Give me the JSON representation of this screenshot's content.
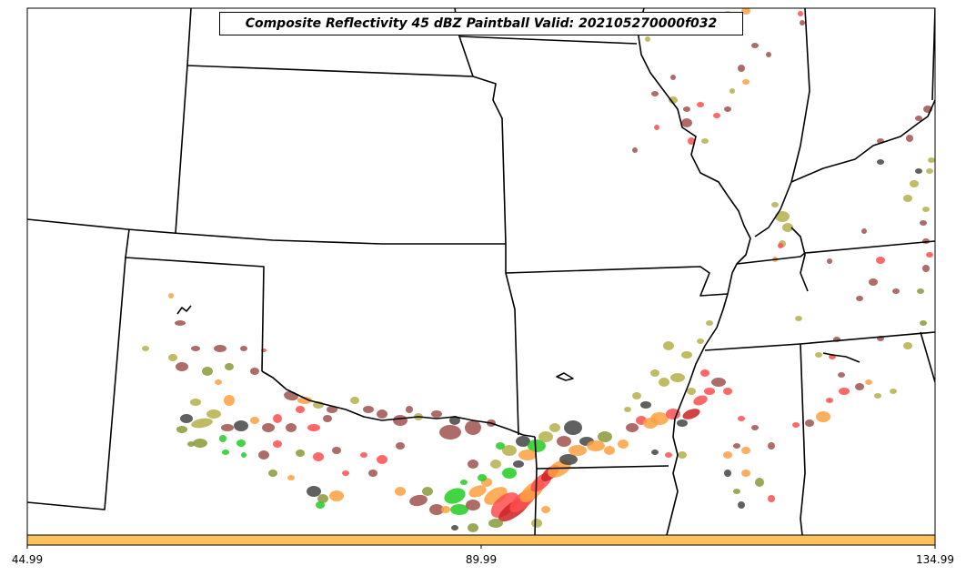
{
  "title": "Composite Reflectivity 45 dBZ Paintball Valid: 202105270000f032",
  "colorbar": {
    "color": "#ffc15c",
    "tick_labels": [
      "44.99",
      "89.99",
      "134.99"
    ],
    "range": [
      44.99,
      134.99
    ]
  },
  "colors": {
    "state_borders": "#000000",
    "member_palette": [
      "#a0524d",
      "#b5b04a",
      "#ff4d4d",
      "#ffa040",
      "#444444",
      "#22cc22",
      "#8a9a3a",
      "#cc2222"
    ]
  }
}
